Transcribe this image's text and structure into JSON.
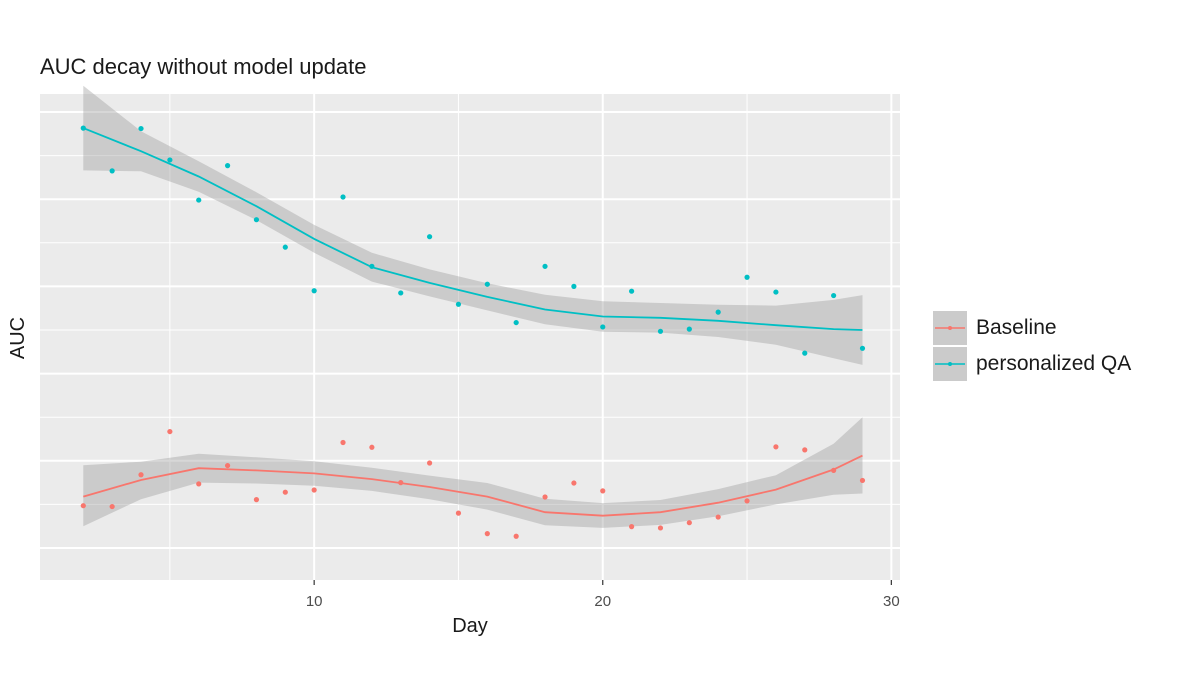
{
  "chart_data": {
    "type": "scatter",
    "title": "AUC decay without model update",
    "xlabel": "Day",
    "ylabel": "AUC",
    "xlim": [
      0.5,
      30.3
    ],
    "ylim": [
      0,
      1
    ],
    "x_ticks": [
      10,
      20,
      30
    ],
    "grid": true,
    "legend_position": "right",
    "series": [
      {
        "name": "Baseline",
        "color": "#f8766d",
        "points": [
          [
            2,
            0.097
          ],
          [
            3,
            0.095
          ],
          [
            4,
            0.168
          ],
          [
            5,
            0.267
          ],
          [
            6,
            0.147
          ],
          [
            7,
            0.189
          ],
          [
            8,
            0.111
          ],
          [
            9,
            0.128
          ],
          [
            10,
            0.133
          ],
          [
            11,
            0.242
          ],
          [
            12,
            0.231
          ],
          [
            13,
            0.15
          ],
          [
            14,
            0.195
          ],
          [
            15,
            0.08
          ],
          [
            16,
            0.033
          ],
          [
            17,
            0.027
          ],
          [
            18,
            0.117
          ],
          [
            19,
            0.149
          ],
          [
            20,
            0.131
          ],
          [
            21,
            0.049
          ],
          [
            22,
            0.046
          ],
          [
            23,
            0.058
          ],
          [
            24,
            0.071
          ],
          [
            25,
            0.108
          ],
          [
            26,
            0.232
          ],
          [
            27,
            0.225
          ],
          [
            28,
            0.178
          ],
          [
            29,
            0.155
          ]
        ],
        "smooth": [
          [
            2,
            0.118
          ],
          [
            4,
            0.156
          ],
          [
            6,
            0.183
          ],
          [
            8,
            0.178
          ],
          [
            10,
            0.171
          ],
          [
            12,
            0.158
          ],
          [
            14,
            0.14
          ],
          [
            16,
            0.118
          ],
          [
            18,
            0.082
          ],
          [
            20,
            0.074
          ],
          [
            22,
            0.082
          ],
          [
            24,
            0.104
          ],
          [
            26,
            0.134
          ],
          [
            28,
            0.18
          ],
          [
            29,
            0.212
          ]
        ],
        "band": [
          [
            2,
            0.05,
            0.19
          ],
          [
            4,
            0.112,
            0.198
          ],
          [
            6,
            0.15,
            0.216
          ],
          [
            8,
            0.148,
            0.208
          ],
          [
            10,
            0.143,
            0.199
          ],
          [
            12,
            0.131,
            0.184
          ],
          [
            14,
            0.112,
            0.166
          ],
          [
            16,
            0.088,
            0.149
          ],
          [
            18,
            0.052,
            0.113
          ],
          [
            20,
            0.046,
            0.103
          ],
          [
            22,
            0.053,
            0.11
          ],
          [
            24,
            0.073,
            0.135
          ],
          [
            26,
            0.1,
            0.167
          ],
          [
            28,
            0.122,
            0.239
          ],
          [
            29,
            0.125,
            0.3
          ]
        ]
      },
      {
        "name": "personalized QA",
        "color": "#00bfc4",
        "points": [
          [
            2,
            0.963
          ],
          [
            3,
            0.865
          ],
          [
            4,
            0.962
          ],
          [
            5,
            0.89
          ],
          [
            6,
            0.798
          ],
          [
            7,
            0.877
          ],
          [
            8,
            0.753
          ],
          [
            9,
            0.69
          ],
          [
            10,
            0.59
          ],
          [
            11,
            0.805
          ],
          [
            12,
            0.646
          ],
          [
            13,
            0.585
          ],
          [
            14,
            0.714
          ],
          [
            15,
            0.559
          ],
          [
            16,
            0.605
          ],
          [
            17,
            0.517
          ],
          [
            18,
            0.646
          ],
          [
            19,
            0.6
          ],
          [
            20,
            0.507
          ],
          [
            21,
            0.589
          ],
          [
            22,
            0.497
          ],
          [
            23,
            0.502
          ],
          [
            24,
            0.541
          ],
          [
            25,
            0.621
          ],
          [
            26,
            0.587
          ],
          [
            27,
            0.447
          ],
          [
            28,
            0.579
          ],
          [
            29,
            0.458
          ]
        ],
        "smooth": [
          [
            2,
            0.963
          ],
          [
            4,
            0.91
          ],
          [
            6,
            0.852
          ],
          [
            8,
            0.784
          ],
          [
            10,
            0.709
          ],
          [
            12,
            0.644
          ],
          [
            14,
            0.608
          ],
          [
            16,
            0.576
          ],
          [
            18,
            0.547
          ],
          [
            20,
            0.531
          ],
          [
            22,
            0.528
          ],
          [
            24,
            0.521
          ],
          [
            26,
            0.511
          ],
          [
            28,
            0.502
          ],
          [
            29,
            0.5
          ]
        ],
        "band": [
          [
            2,
            0.866,
            1.06
          ],
          [
            4,
            0.864,
            0.956
          ],
          [
            6,
            0.817,
            0.887
          ],
          [
            8,
            0.752,
            0.816
          ],
          [
            10,
            0.677,
            0.741
          ],
          [
            12,
            0.611,
            0.677
          ],
          [
            14,
            0.577,
            0.639
          ],
          [
            16,
            0.545,
            0.607
          ],
          [
            18,
            0.513,
            0.581
          ],
          [
            20,
            0.496,
            0.566
          ],
          [
            22,
            0.494,
            0.562
          ],
          [
            24,
            0.484,
            0.558
          ],
          [
            26,
            0.466,
            0.556
          ],
          [
            28,
            0.435,
            0.569
          ],
          [
            29,
            0.42,
            0.58
          ]
        ]
      }
    ]
  }
}
